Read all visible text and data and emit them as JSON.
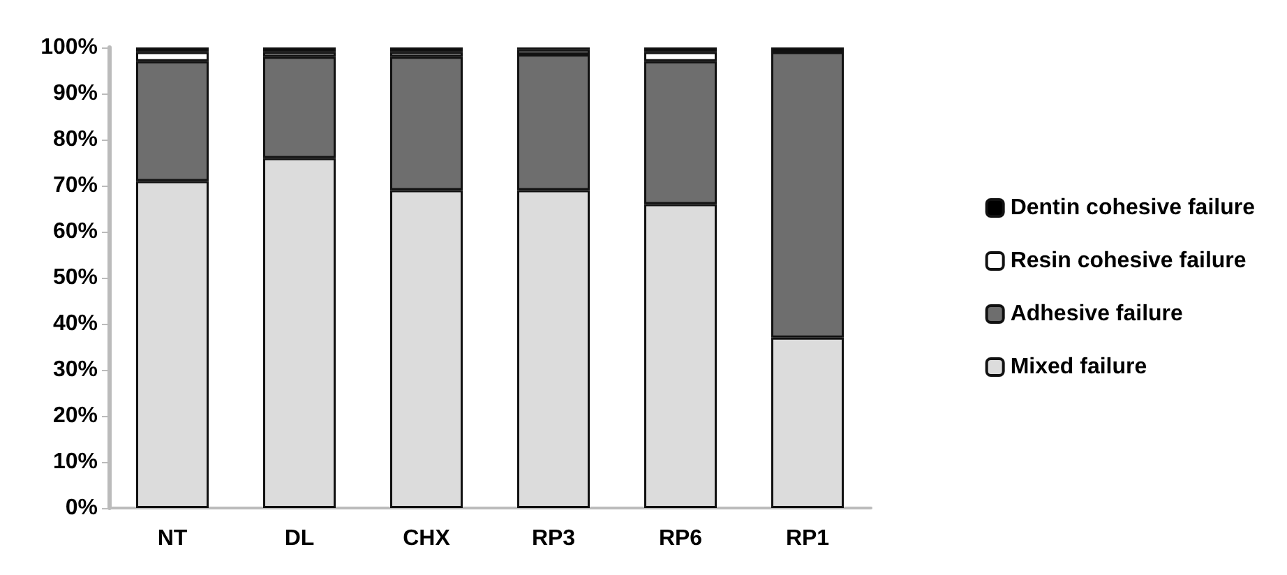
{
  "chart_data": {
    "type": "bar",
    "stacked": true,
    "categories": [
      "NT",
      "DL",
      "CHX",
      "RP3",
      "RP6",
      "RP1"
    ],
    "series": [
      {
        "name": "Mixed failure",
        "color": "#dcdcdc",
        "values": [
          71,
          76,
          69,
          69,
          66,
          37
        ]
      },
      {
        "name": "Adhesive failure",
        "color": "#6e6e6e",
        "values": [
          26,
          22,
          29,
          29.5,
          31,
          62
        ]
      },
      {
        "name": "Resin cohesive failure",
        "color": "#ffffff",
        "values": [
          2,
          1,
          1,
          1,
          2,
          0
        ]
      },
      {
        "name": "Dentin cohesive failure",
        "color": "#000000",
        "values": [
          1,
          1,
          1,
          0.5,
          1,
          1
        ]
      }
    ],
    "ylim": [
      0,
      100
    ],
    "yticks": [
      {
        "value": 0,
        "label": "0%"
      },
      {
        "value": 10,
        "label": "10%"
      },
      {
        "value": 20,
        "label": "20%"
      },
      {
        "value": 30,
        "label": "30%"
      },
      {
        "value": 40,
        "label": "40%"
      },
      {
        "value": 50,
        "label": "50%"
      },
      {
        "value": 60,
        "label": "60%"
      },
      {
        "value": 70,
        "label": "70%"
      },
      {
        "value": 80,
        "label": "80%"
      },
      {
        "value": 90,
        "label": "90%"
      },
      {
        "value": 100,
        "label": "100%"
      }
    ],
    "grid": false,
    "legend": "right"
  }
}
